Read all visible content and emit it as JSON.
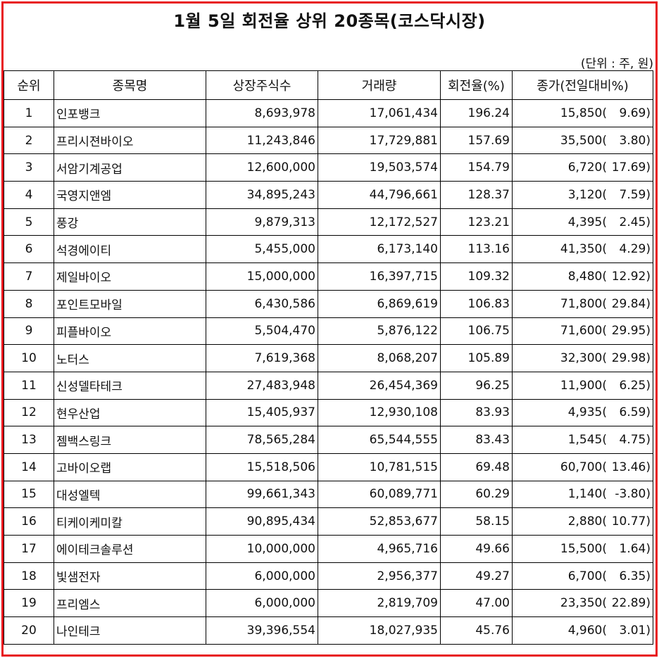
{
  "title": "1월 5일 회전율 상위 20종목(코스닥시장)",
  "unit_note": "(단위 : 주, 원)",
  "headers": [
    "순위",
    "종목명",
    "상장주식수",
    "거래량",
    "회전율(%)",
    "종가(전일대비%)"
  ],
  "rows": [
    {
      "rank": "1",
      "name": "인포뱅크",
      "listed": "8,693,978",
      "volume": "17,061,434",
      "turnover": "196.24",
      "close": "15,850(",
      "change": "9.69)"
    },
    {
      "rank": "2",
      "name": "프리시젼바이오",
      "listed": "11,243,846",
      "volume": "17,729,881",
      "turnover": "157.69",
      "close": "35,500(",
      "change": "3.80)"
    },
    {
      "rank": "3",
      "name": "서암기계공업",
      "listed": "12,600,000",
      "volume": "19,503,574",
      "turnover": "154.79",
      "close": "6,720(",
      "change": "17.69)"
    },
    {
      "rank": "4",
      "name": "국영지앤엠",
      "listed": "34,895,243",
      "volume": "44,796,661",
      "turnover": "128.37",
      "close": "3,120(",
      "change": "7.59)"
    },
    {
      "rank": "5",
      "name": "풍강",
      "listed": "9,879,313",
      "volume": "12,172,527",
      "turnover": "123.21",
      "close": "4,395(",
      "change": "2.45)"
    },
    {
      "rank": "6",
      "name": "석경에이티",
      "listed": "5,455,000",
      "volume": "6,173,140",
      "turnover": "113.16",
      "close": "41,350(",
      "change": "4.29)"
    },
    {
      "rank": "7",
      "name": "제일바이오",
      "listed": "15,000,000",
      "volume": "16,397,715",
      "turnover": "109.32",
      "close": "8,480(",
      "change": "12.92)"
    },
    {
      "rank": "8",
      "name": "포인트모바일",
      "listed": "6,430,586",
      "volume": "6,869,619",
      "turnover": "106.83",
      "close": "71,800(",
      "change": "29.84)"
    },
    {
      "rank": "9",
      "name": "피플바이오",
      "listed": "5,504,470",
      "volume": "5,876,122",
      "turnover": "106.75",
      "close": "71,600(",
      "change": "29.95)"
    },
    {
      "rank": "10",
      "name": "노터스",
      "listed": "7,619,368",
      "volume": "8,068,207",
      "turnover": "105.89",
      "close": "32,300(",
      "change": "29.98)"
    },
    {
      "rank": "11",
      "name": "신성델타테크",
      "listed": "27,483,948",
      "volume": "26,454,369",
      "turnover": "96.25",
      "close": "11,900(",
      "change": "6.25)"
    },
    {
      "rank": "12",
      "name": "현우산업",
      "listed": "15,405,937",
      "volume": "12,930,108",
      "turnover": "83.93",
      "close": "4,935(",
      "change": "6.59)"
    },
    {
      "rank": "13",
      "name": "젬백스링크",
      "listed": "78,565,284",
      "volume": "65,544,555",
      "turnover": "83.43",
      "close": "1,545(",
      "change": "4.75)"
    },
    {
      "rank": "14",
      "name": "고바이오랩",
      "listed": "15,518,506",
      "volume": "10,781,515",
      "turnover": "69.48",
      "close": "60,700(",
      "change": "13.46)"
    },
    {
      "rank": "15",
      "name": "대성엘텍",
      "listed": "99,661,343",
      "volume": "60,089,771",
      "turnover": "60.29",
      "close": "1,140(",
      "change": "-3.80)"
    },
    {
      "rank": "16",
      "name": "티케이케미칼",
      "listed": "90,895,434",
      "volume": "52,853,677",
      "turnover": "58.15",
      "close": "2,880(",
      "change": "10.77)"
    },
    {
      "rank": "17",
      "name": "에이테크솔루션",
      "listed": "10,000,000",
      "volume": "4,965,716",
      "turnover": "49.66",
      "close": "15,500(",
      "change": "1.64)"
    },
    {
      "rank": "18",
      "name": "빛샘전자",
      "listed": "6,000,000",
      "volume": "2,956,377",
      "turnover": "49.27",
      "close": "6,700(",
      "change": "6.35)"
    },
    {
      "rank": "19",
      "name": "프리엠스",
      "listed": "6,000,000",
      "volume": "2,819,709",
      "turnover": "47.00",
      "close": "23,350(",
      "change": "22.89)"
    },
    {
      "rank": "20",
      "name": "나인테크",
      "listed": "39,396,554",
      "volume": "18,027,935",
      "turnover": "45.76",
      "close": "4,960(",
      "change": "3.01)"
    }
  ],
  "colors": {
    "frame": "#e8171c",
    "text": "#111111",
    "grid": "#000000"
  }
}
